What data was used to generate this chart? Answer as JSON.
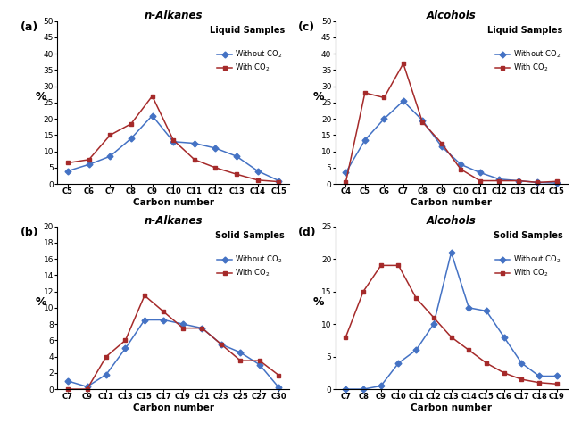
{
  "panel_a": {
    "title": "n-Alkanes",
    "subtitle": "Liquid Samples",
    "xlabel": "Carbon number",
    "ylabel": "%",
    "ylim": [
      0,
      50
    ],
    "yticks": [
      0,
      5,
      10,
      15,
      20,
      25,
      30,
      35,
      40,
      45,
      50
    ],
    "x_labels": [
      "C5",
      "C6",
      "C7",
      "C8",
      "C9",
      "C10",
      "C11",
      "C12",
      "C13",
      "C14",
      "C15"
    ],
    "without_co2": [
      4,
      6,
      8.5,
      14,
      21,
      13,
      12.5,
      11,
      8.5,
      4,
      1
    ],
    "with_co2": [
      6.5,
      7.5,
      15,
      18.5,
      27,
      13.5,
      7.5,
      5,
      3,
      1.2,
      0.7
    ]
  },
  "panel_b": {
    "title": "n-Alkanes",
    "subtitle": "Solid Samples",
    "xlabel": "Carbon number",
    "ylabel": "%",
    "ylim": [
      0,
      20
    ],
    "yticks": [
      0,
      2,
      4,
      6,
      8,
      10,
      12,
      14,
      16,
      18,
      20
    ],
    "x_labels": [
      "C7",
      "C9",
      "C11",
      "C13",
      "C15",
      "C17",
      "C19",
      "C21",
      "C23",
      "C25",
      "C27",
      "C30"
    ],
    "without_co2": [
      1,
      0.3,
      1.8,
      5,
      8.5,
      8.5,
      8,
      7.5,
      5.5,
      4.5,
      3,
      0.2
    ],
    "with_co2": [
      0,
      0,
      4,
      6,
      11.5,
      9.5,
      7.5,
      7.5,
      5.5,
      3.5,
      3.5,
      1.7
    ]
  },
  "panel_c": {
    "title": "Alcohols",
    "subtitle": "Liquid Samples",
    "xlabel": "Carbon number",
    "ylabel": "%",
    "ylim": [
      0,
      50
    ],
    "yticks": [
      0,
      5,
      10,
      15,
      20,
      25,
      30,
      35,
      40,
      45,
      50
    ],
    "x_labels": [
      "C4",
      "C5",
      "C6",
      "C7",
      "C8",
      "C9",
      "C10",
      "C11",
      "C12",
      "C13",
      "C14",
      "C15"
    ],
    "without_co2": [
      3.5,
      13.5,
      20,
      25.5,
      19.5,
      11.5,
      6,
      3.5,
      1.5,
      1,
      0.5,
      0.3
    ],
    "with_co2": [
      0.5,
      28,
      26.5,
      37,
      19,
      12.5,
      4.5,
      1,
      1,
      1,
      0.5,
      0.8
    ]
  },
  "panel_d": {
    "title": "Alcohols",
    "subtitle": "Solid Samples",
    "xlabel": "Carbon number",
    "ylabel": "%",
    "ylim": [
      0,
      25
    ],
    "yticks": [
      0,
      5,
      10,
      15,
      20,
      25
    ],
    "x_labels": [
      "C7",
      "C8",
      "C9",
      "C10",
      "C11",
      "C12",
      "C13",
      "C14",
      "C15",
      "C16",
      "C17",
      "C18",
      "C19"
    ],
    "without_co2": [
      0,
      0,
      0.5,
      4,
      6,
      10,
      21,
      12.5,
      12,
      8,
      4,
      2,
      2
    ],
    "with_co2": [
      8,
      15,
      19,
      19,
      14,
      11,
      8,
      6,
      4,
      2.5,
      1.5,
      1,
      0.8
    ]
  },
  "blue_color": "#4472C4",
  "red_color": "#A52A2A",
  "panel_labels": [
    "(a)",
    "(b)",
    "(c)",
    "(d)"
  ]
}
